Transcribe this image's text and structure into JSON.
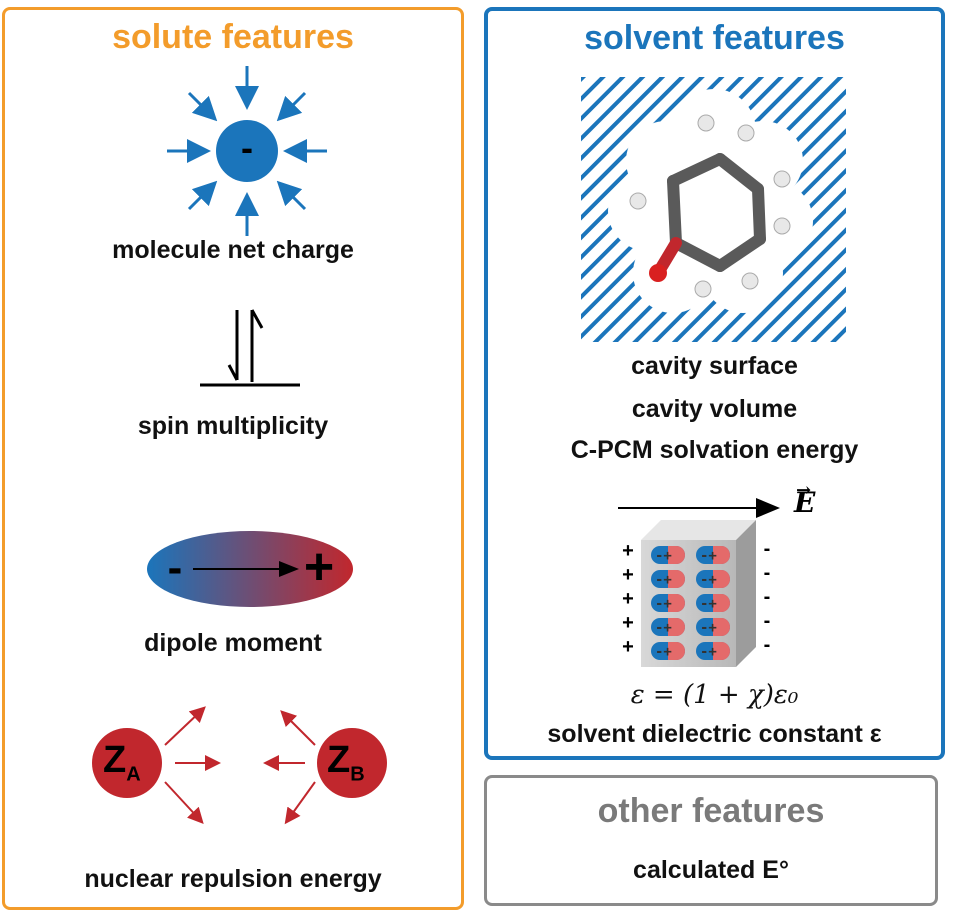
{
  "colors": {
    "solute": "#f39c2b",
    "solvent": "#1b75bb",
    "other": "#8a8a8a",
    "charge_blue": "#1b75bb",
    "nucleus_red": "#c1272d"
  },
  "solute": {
    "title": "solute features",
    "charge_sign": "-",
    "net_charge_label": "molecule net charge",
    "spin_label": "spin multiplicity",
    "dipole_minus": "-",
    "dipole_plus": "+",
    "dipole_label": "dipole moment",
    "za_letter": "Z",
    "za_sub": "A",
    "zb_letter": "Z",
    "zb_sub": "B",
    "nuclear_label": "nuclear repulsion energy"
  },
  "solvent": {
    "title": "solvent features",
    "cavity_surface": "cavity surface",
    "cavity_volume": "cavity volume",
    "cpcm": "C-PCM solvation energy",
    "field_symbol": "E",
    "plus_sign": "+",
    "minus_sign": "-",
    "dipole_signs": "-+",
    "equation": "ε = (1 + χ)ε₀",
    "dielectric_label": "solvent dielectric constant ε"
  },
  "other": {
    "title": "other features",
    "calc_label": "calculated E°"
  }
}
